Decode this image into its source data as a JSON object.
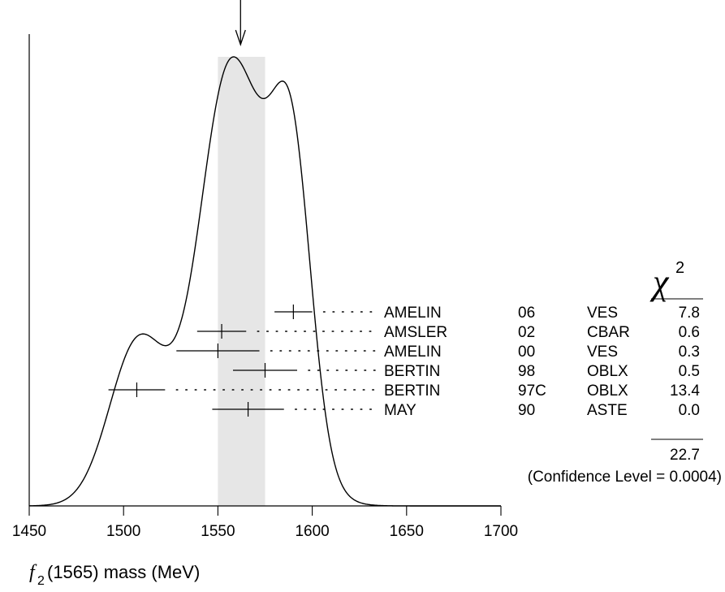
{
  "chart_data": {
    "type": "ideogram",
    "x_axis": {
      "label_symbol": "f",
      "label_subscript": "2",
      "label_rest": "(1565) mass (MeV)",
      "range": [
        1450,
        1700
      ],
      "ticks": [
        1450,
        1500,
        1550,
        1600,
        1650,
        1700
      ],
      "tick_labels": [
        "1450",
        "1500",
        "1550",
        "1600",
        "1650",
        "1700"
      ]
    },
    "weighted_average": {
      "value": 1562,
      "band": [
        1550,
        1575
      ]
    },
    "measurements": [
      {
        "author": "AMELIN",
        "year": "06",
        "experiment": "VES",
        "value": 1590,
        "error_low": 10,
        "error_high": 10,
        "chi2": "7.8"
      },
      {
        "author": "AMSLER",
        "year": "02",
        "experiment": "CBAR",
        "value": 1552,
        "error_low": 13,
        "error_high": 13,
        "chi2": "0.6"
      },
      {
        "author": "AMELIN",
        "year": "00",
        "experiment": "VES",
        "value": 1550,
        "error_low": 22,
        "error_high": 22,
        "chi2": "0.3"
      },
      {
        "author": "BERTIN",
        "year": "98",
        "experiment": "OBLX",
        "value": 1575,
        "error_low": 17,
        "error_high": 17,
        "chi2": "0.5"
      },
      {
        "author": "BERTIN",
        "year": "97C",
        "experiment": "OBLX",
        "value": 1507,
        "error_low": 15,
        "error_high": 15,
        "chi2": "13.4"
      },
      {
        "author": "MAY",
        "year": "90",
        "experiment": "ASTE",
        "value": 1566,
        "error_low": 19,
        "error_high": 19,
        "chi2": "0.0"
      }
    ],
    "chi2_header_symbol": "χ",
    "chi2_header_sup": "2",
    "chi2_total": "22.7",
    "confidence_note": "(Confidence Level = 0.0004)"
  }
}
